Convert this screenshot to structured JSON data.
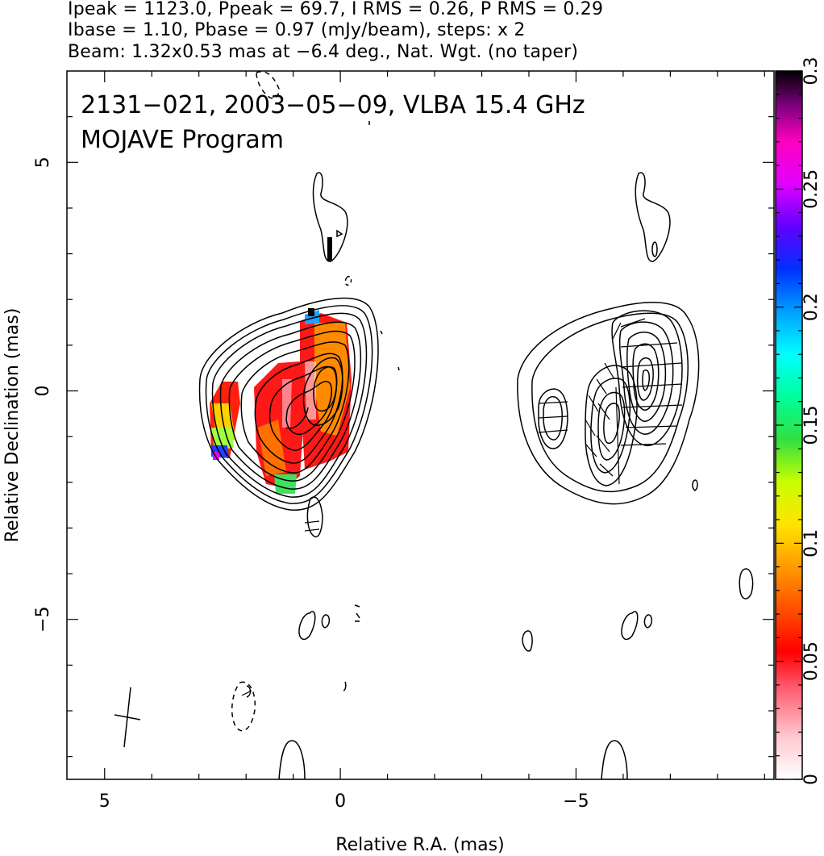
{
  "header": {
    "line1": "Ipeak = 1123.0, Ppeak = 69.7, I RMS = 0.26, P RMS = 0.29",
    "line2": "Ibase = 1.10, Pbase = 0.97 (mJy/beam), steps: x 2",
    "line3": "Beam: 1.32x0.53 mas at −6.4 deg., Nat. Wgt. (no taper)"
  },
  "chart_data": {
    "type": "heatmap",
    "annotation_line1": "2131−021, 2003−05−09, VLBA 15.4 GHz",
    "annotation_line2": "MOJAVE Program",
    "xlabel": "Relative R.A. (mas)",
    "ylabel": "Relative Declination (mas)",
    "xlim": [
      5.8,
      -9.2
    ],
    "ylim": [
      -8.5,
      7
    ],
    "x_ticks": [
      {
        "value": 5,
        "label": "5"
      },
      {
        "value": 0,
        "label": "0"
      },
      {
        "value": -5,
        "label": "−5"
      }
    ],
    "y_ticks": [
      {
        "value": 5,
        "label": "5"
      },
      {
        "value": 0,
        "label": "0"
      },
      {
        "value": -5,
        "label": "−5"
      }
    ],
    "colorbar": {
      "range": [
        0,
        0.3
      ],
      "ticks": [
        {
          "value": 0,
          "label": "0"
        },
        {
          "value": 0.05,
          "label": "0.05"
        },
        {
          "value": 0.1,
          "label": "0.1"
        },
        {
          "value": 0.15,
          "label": "0.15"
        },
        {
          "value": 0.2,
          "label": "0.2"
        },
        {
          "value": 0.25,
          "label": "0.25"
        },
        {
          "value": 0.3,
          "label": "0.3"
        }
      ]
    }
  }
}
